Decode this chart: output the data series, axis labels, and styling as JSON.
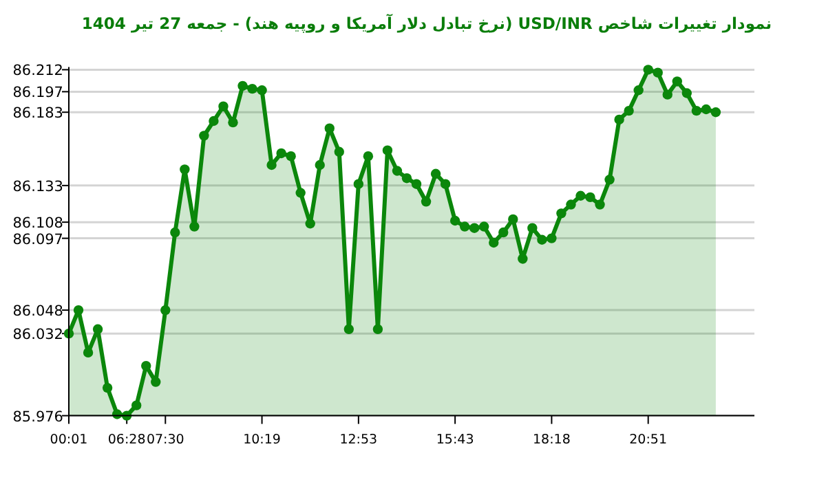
{
  "chart_data": {
    "type": "area",
    "title": "نمودار تغییرات شاخص USD/INR (نرخ تبادل دلار آمریکا و روپیه هند) - جمعه  27 تیر 1404",
    "categories": [
      "00:01",
      null,
      null,
      null,
      null,
      null,
      "06:28",
      null,
      null,
      null,
      "07:30",
      null,
      null,
      null,
      null,
      null,
      null,
      null,
      null,
      null,
      "10:19",
      null,
      null,
      null,
      null,
      null,
      null,
      null,
      null,
      null,
      "12:53",
      null,
      null,
      null,
      null,
      null,
      null,
      null,
      null,
      null,
      "15:43",
      null,
      null,
      null,
      null,
      null,
      null,
      null,
      null,
      null,
      "18:18",
      null,
      null,
      null,
      null,
      null,
      null,
      null,
      null,
      null,
      "20:51",
      null,
      null,
      null,
      null,
      null,
      null,
      null
    ],
    "series": [
      {
        "color": "#0b870b",
        "values": [
          86.032,
          86.048,
          86.019,
          86.035,
          85.995,
          85.977,
          85.976,
          85.983,
          86.01,
          85.999,
          86.048,
          86.101,
          86.144,
          86.105,
          86.167,
          86.177,
          86.187,
          86.176,
          86.201,
          86.199,
          86.198,
          86.147,
          86.155,
          86.153,
          86.128,
          86.107,
          86.147,
          86.172,
          86.156,
          86.035,
          86.134,
          86.153,
          86.035,
          86.157,
          86.143,
          86.138,
          86.134,
          86.122,
          86.141,
          86.134,
          86.109,
          86.105,
          86.104,
          86.105,
          86.094,
          86.101,
          86.11,
          86.083,
          86.104,
          86.096,
          86.097,
          86.114,
          86.12,
          86.126,
          86.125,
          86.12,
          86.137,
          86.178,
          86.184,
          86.198,
          86.212,
          86.21,
          86.195,
          86.204,
          86.196,
          86.184,
          86.185,
          86.183
        ]
      }
    ],
    "ylim": [
      85.976,
      86.212
    ],
    "yticks": [
      85.976,
      86.032,
      86.048,
      86.097,
      86.108,
      86.133,
      86.183,
      86.197,
      86.212
    ],
    "grid": "y",
    "marker": "circle",
    "line_style": "solid"
  }
}
